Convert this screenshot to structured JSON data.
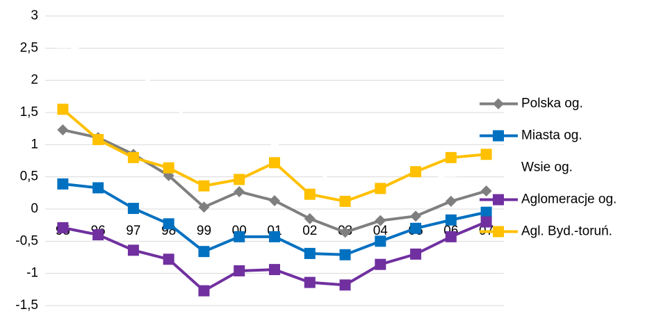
{
  "chart_data": {
    "type": "line",
    "categories": [
      "95",
      "96",
      "97",
      "98",
      "99",
      "00",
      "01",
      "02",
      "03",
      "04",
      "05",
      "06",
      "07"
    ],
    "series": [
      {
        "name": "Polska og.",
        "color": "#7f7f7f",
        "marker": "diamond",
        "values": [
          1.23,
          1.11,
          0.85,
          0.52,
          0.03,
          0.27,
          0.13,
          -0.15,
          -0.36,
          -0.18,
          -0.11,
          0.12,
          0.28
        ]
      },
      {
        "name": "Miasta og.",
        "color": "#0070c0",
        "marker": "square",
        "values": [
          0.39,
          0.33,
          0.01,
          -0.23,
          -0.66,
          -0.43,
          -0.43,
          -0.69,
          -0.71,
          -0.5,
          -0.3,
          -0.17,
          -0.05
        ]
      },
      {
        "name": "Wsie og.",
        "color": "#ffffff",
        "marker": "triangle",
        "values": [
          2.57,
          2.36,
          2.19,
          1.72,
          1.09,
          1.36,
          1.01,
          0.7,
          0.23,
          0.36,
          0.31,
          0.57,
          0.73
        ]
      },
      {
        "name": "Aglomeracje og.",
        "color": "#7030a0",
        "marker": "square",
        "values": [
          -0.29,
          -0.4,
          -0.64,
          -0.78,
          -1.27,
          -0.96,
          -0.94,
          -1.14,
          -1.18,
          -0.86,
          -0.7,
          -0.43,
          -0.2
        ]
      },
      {
        "name": "Agl. Byd.-toruń.",
        "color": "#ffc000",
        "marker": "square",
        "values": [
          1.55,
          1.08,
          0.8,
          0.64,
          0.36,
          0.46,
          0.72,
          0.23,
          0.12,
          0.32,
          0.58,
          0.8,
          0.85
        ]
      }
    ],
    "ylim": [
      -1.5,
      3
    ],
    "yticks": [
      {
        "value": -1.5,
        "label": "-1,5"
      },
      -1,
      {
        "value": -0.5,
        "label": "-0,5"
      },
      0,
      {
        "value": 0.5,
        "label": "0,5"
      },
      1,
      {
        "value": 1.5,
        "label": "1,5"
      },
      2,
      {
        "value": 2.5,
        "label": "2,5"
      },
      3
    ],
    "grid": true,
    "legend": "right"
  }
}
